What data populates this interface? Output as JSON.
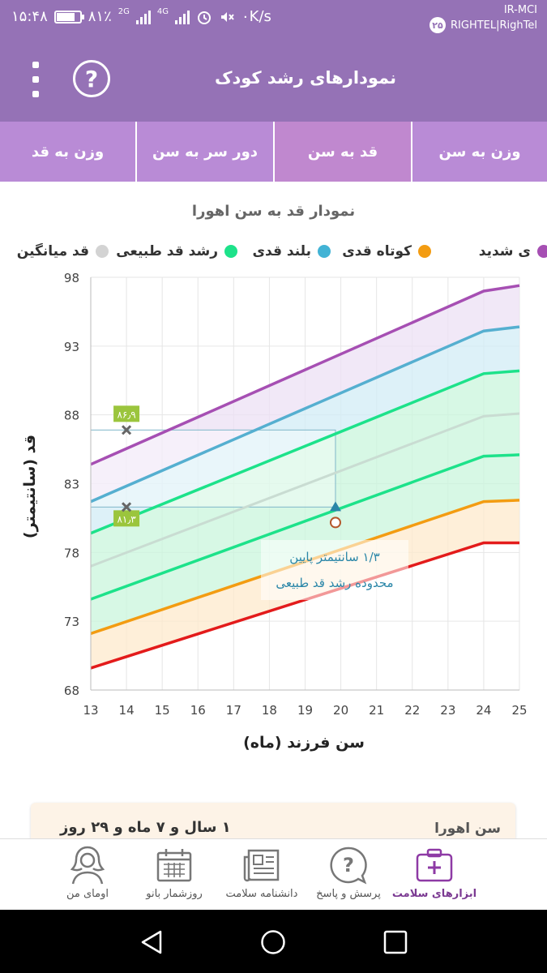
{
  "status_bar": {
    "time": "۱۵:۴۸",
    "battery": "۸۱٪",
    "battery_level": 0.81,
    "net_2g": "2G",
    "net_4g": "4G",
    "speed": "۰K/s",
    "carrier1": "IR-MCI",
    "carrier2": "RIGHTEL|RighTel",
    "badge": "۲۵"
  },
  "app_bar": {
    "title": "نمودارهای رشد کودک",
    "help_symbol": "?"
  },
  "tabs": [
    {
      "label": "وزن به سن",
      "active": false
    },
    {
      "label": "قد به سن",
      "active": true
    },
    {
      "label": "دور سر به سن",
      "active": false
    },
    {
      "label": "وزن به قد",
      "active": false
    }
  ],
  "chart_title": "نمودار قد به سن اهورا",
  "legend": [
    {
      "label": "ی شدید",
      "color": "#a64fb3"
    },
    {
      "label": "کوتاه قدی",
      "color": "#f39c12"
    },
    {
      "label": "بلند قدی",
      "color": "#42b3d5"
    },
    {
      "label": "رشد قد طبیعی",
      "color": "#1de28a"
    },
    {
      "label": "قد میانگین",
      "color": "#d3d3d3"
    }
  ],
  "chart_data": {
    "type": "area",
    "x": [
      13,
      14,
      15,
      16,
      17,
      18,
      19,
      20,
      21,
      22,
      23,
      24,
      25
    ],
    "xlim": [
      13,
      25
    ],
    "ylim": [
      68,
      98
    ],
    "y_ticks": [
      68,
      73,
      78,
      83,
      88,
      93,
      98
    ],
    "x_ticks": [
      13,
      14,
      15,
      16,
      17,
      18,
      19,
      20,
      21,
      22,
      23,
      24,
      25
    ],
    "xlabel": "سن فرزند (ماه)",
    "ylabel": "قد (سانتیمتر)",
    "grid": true,
    "series": [
      {
        "color": "#e31b1b",
        "fill": "#f8c8c8",
        "points": [
          [
            13,
            69.6
          ],
          [
            24,
            78.7
          ],
          [
            25,
            78.7
          ]
        ]
      },
      {
        "color": "#f39c12",
        "fill": "#fde9cc",
        "points": [
          [
            13,
            72.1
          ],
          [
            24,
            81.7
          ],
          [
            25,
            81.8
          ]
        ]
      },
      {
        "color": "#1de28a",
        "fill": "#c9f5dc",
        "points": [
          [
            13,
            74.6
          ],
          [
            24,
            85.0
          ],
          [
            25,
            85.1
          ]
        ]
      },
      {
        "color": "#c9dcd2",
        "fill": null,
        "points": [
          [
            13,
            77.0
          ],
          [
            24,
            87.9
          ],
          [
            25,
            88.1
          ]
        ]
      },
      {
        "color": "#1de28a",
        "fill": "#c9f5dc",
        "points": [
          [
            13,
            79.4
          ],
          [
            24,
            91.0
          ],
          [
            25,
            91.2
          ]
        ]
      },
      {
        "color": "#55afd0",
        "fill": "#d1ecf5",
        "points": [
          [
            13,
            81.7
          ],
          [
            24,
            94.1
          ],
          [
            25,
            94.4
          ]
        ]
      },
      {
        "color": "#a64fb3",
        "fill": "#ece0f4",
        "points": [
          [
            13,
            84.4
          ],
          [
            24,
            97.0
          ],
          [
            25,
            97.4
          ]
        ]
      }
    ],
    "markers": [
      {
        "x": 14,
        "y": 86.9,
        "label": "۸۶٫۹"
      },
      {
        "x": 14,
        "y": 81.3,
        "label": "۸۱٫۳"
      }
    ],
    "child_point": {
      "x": 19.85,
      "y": 81.0
    },
    "reference_x": 19.85,
    "annotation": {
      "line1": "۱/۳ سانتیمتر پایین",
      "line2": "محدوده رشد قد طبیعی"
    }
  },
  "info_card": {
    "label": "سن اهورا",
    "value": "۱ سال و ۷ ماه و ۲۹ روز"
  },
  "bottom_nav": [
    {
      "label": "ابزارهای سلامت",
      "icon": "health-kit-icon",
      "active": true
    },
    {
      "label": "پرسش و پاسخ",
      "icon": "question-bubble-icon",
      "active": false
    },
    {
      "label": "دانشنامه سلامت",
      "icon": "newspaper-icon",
      "active": false
    },
    {
      "label": "روزشمار بانو",
      "icon": "calendar-icon",
      "active": false
    },
    {
      "label": "اومای من",
      "icon": "profile-woman-icon",
      "active": false
    }
  ]
}
